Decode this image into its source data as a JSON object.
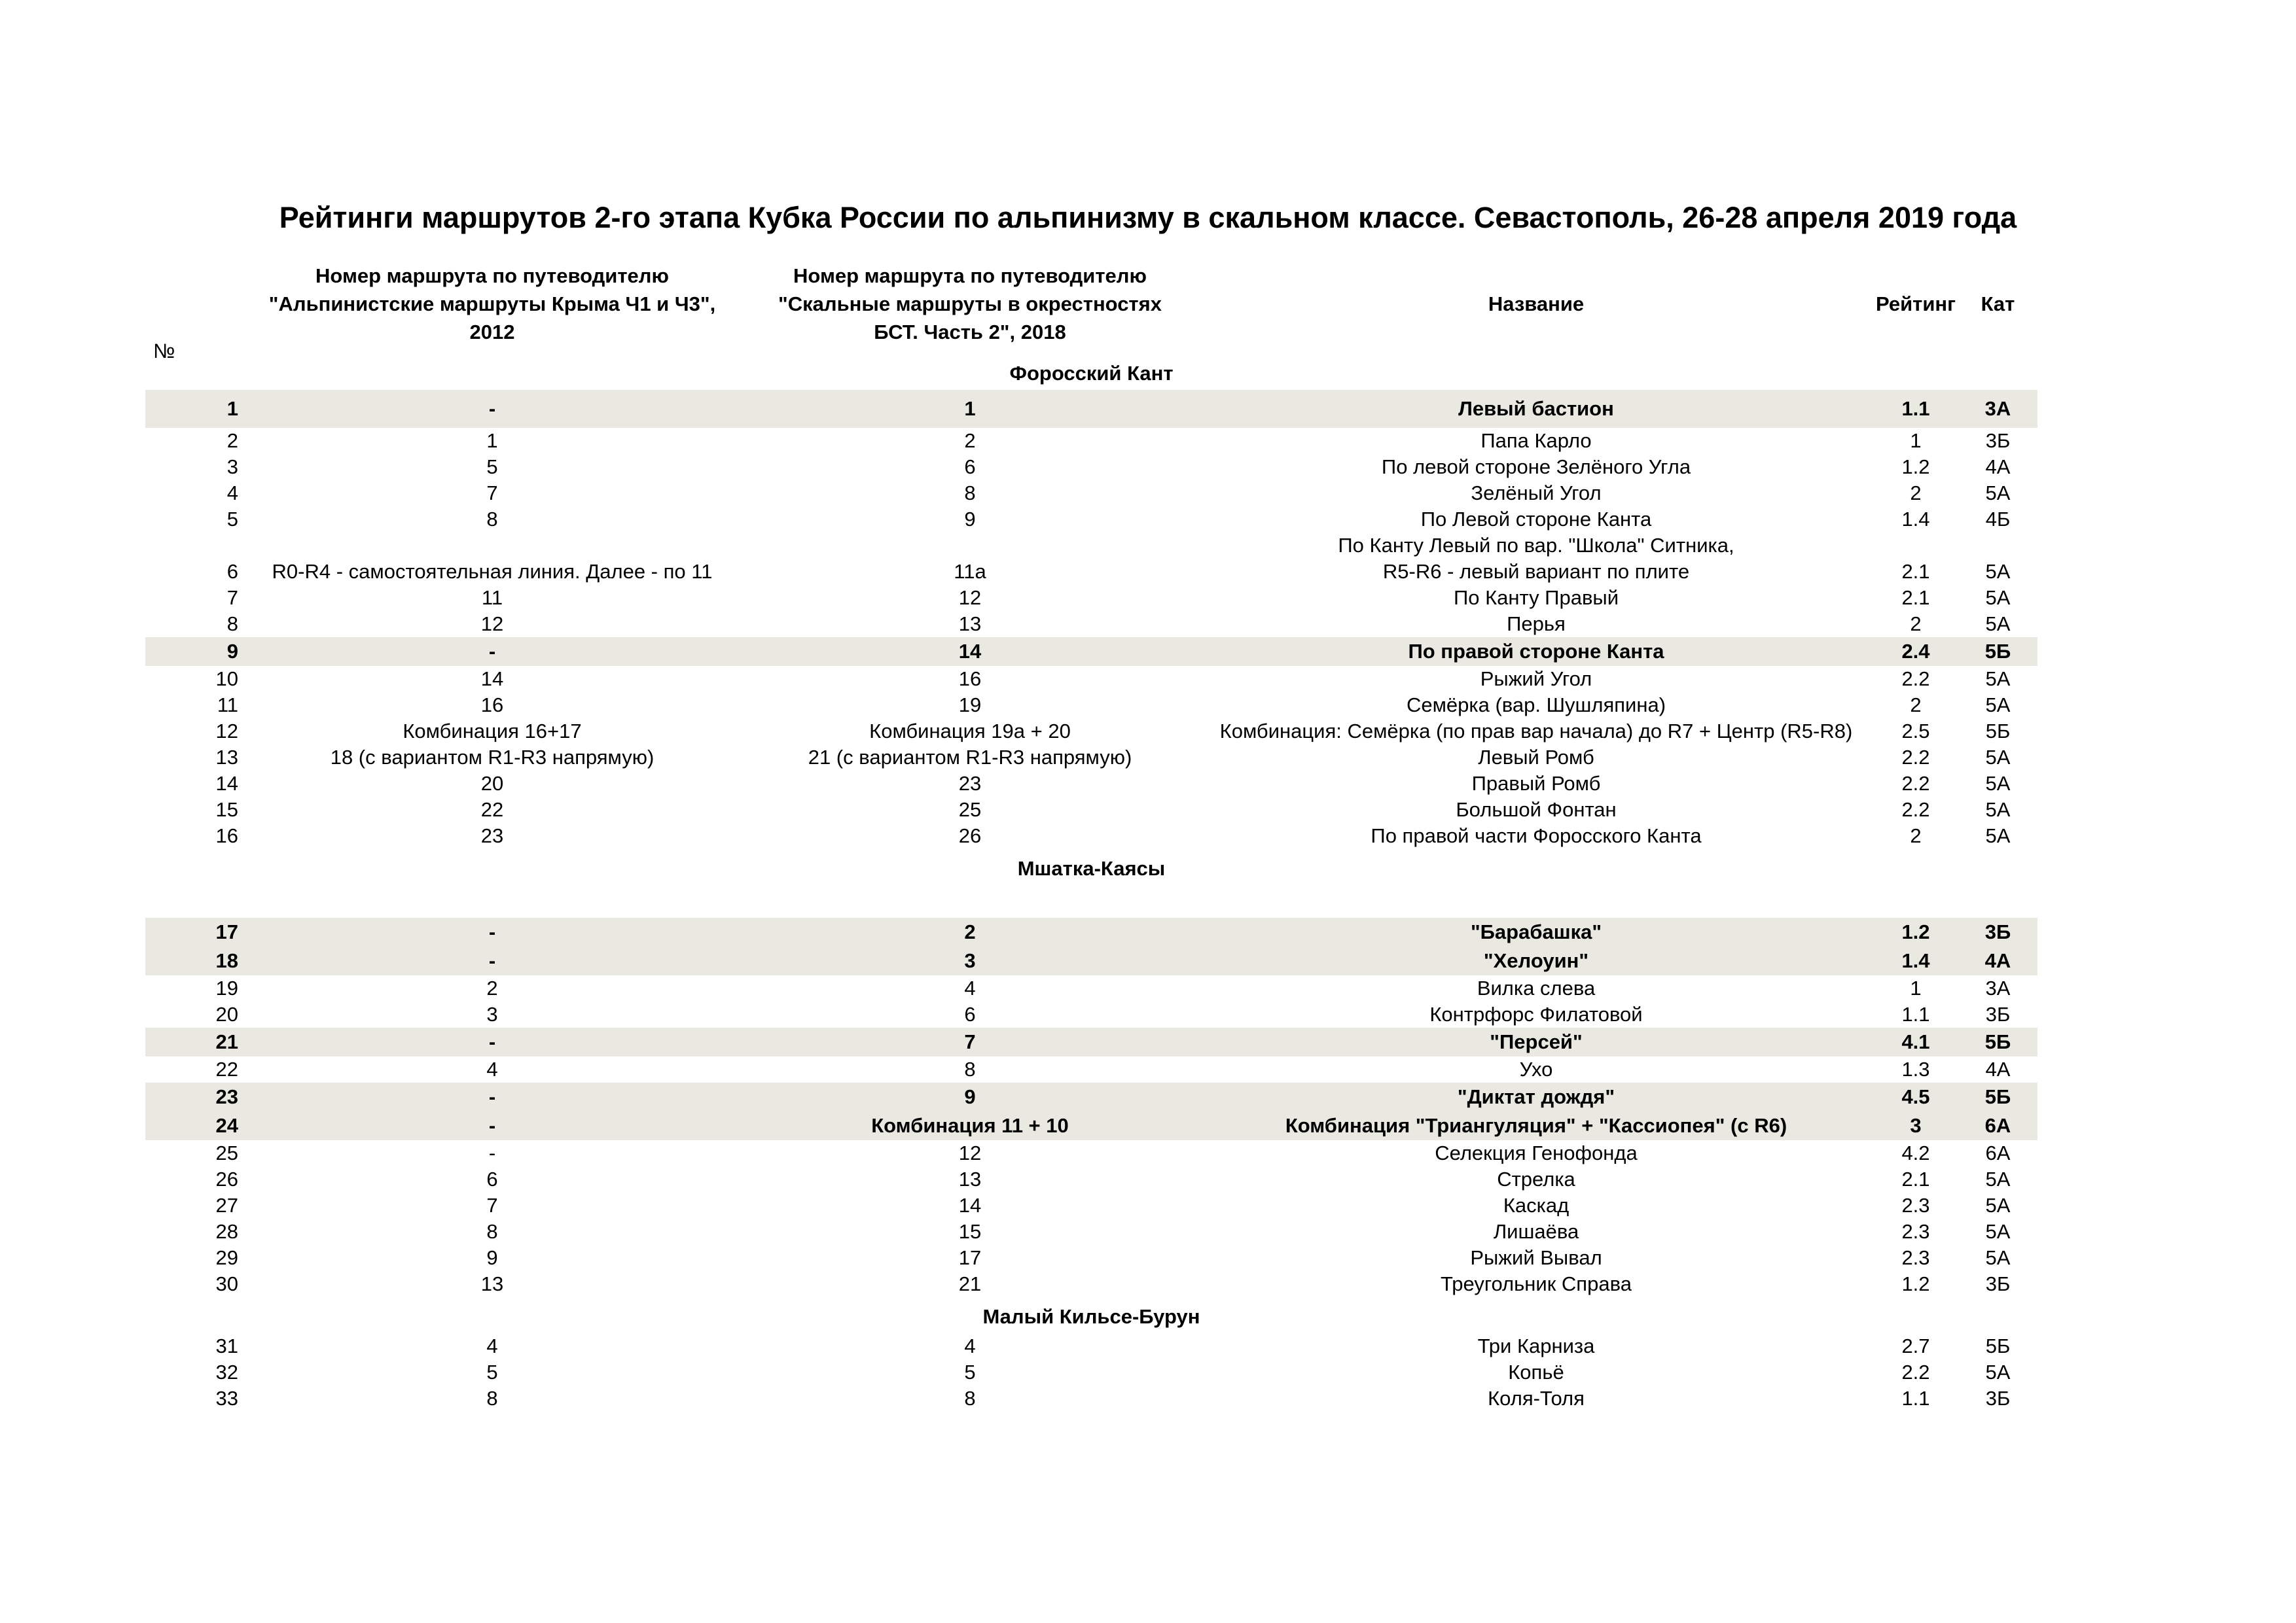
{
  "title": "Рейтинги маршрутов 2-го этапа Кубка России по альпинизму в скальном классе. Севастополь, 26-28 апреля 2019 года",
  "header": {
    "num": "№",
    "guide2012": [
      "Номер маршрута по путеводителю",
      "\"Альпинистские маршруты Крыма Ч1 и Ч3\",",
      "2012"
    ],
    "guide_bst": [
      "Номер маршрута по путеводителю",
      "\"Скальные маршруты в окрестностях",
      "БСТ. Часть 2\", 2018"
    ],
    "name": "Название",
    "rating": "Рейтинг",
    "cat": "Кат"
  },
  "highlight_color": "#e9e8e1",
  "sections": [
    {
      "title": "Форосский Кант",
      "rows": [
        {
          "n": "1",
          "a": "-",
          "b": "1",
          "name": "Левый бастион",
          "r": "1.1",
          "c": "3А",
          "hl": true
        },
        {
          "n": "2",
          "a": "1",
          "b": "2",
          "name": "Папа Карло",
          "r": "1",
          "c": "3Б"
        },
        {
          "n": "3",
          "a": "5",
          "b": "6",
          "name": "По левой стороне Зелёного Угла",
          "r": "1.2",
          "c": "4А"
        },
        {
          "n": "4",
          "a": "7",
          "b": "8",
          "name": "Зелёный Угол",
          "r": "2",
          "c": "5А"
        },
        {
          "n": "5",
          "a": "8",
          "b": "9",
          "name": "По Левой стороне Канта",
          "r": "1.4",
          "c": "4Б"
        },
        {
          "n": "6",
          "a": "R0-R4 - самостоятельная линия. Далее - по 11",
          "b": "11а",
          "above": "По Канту Левый по вар. \"Школа\" Ситника,",
          "name": "R5-R6 - левый вариант по плите",
          "r": "2.1",
          "c": "5А"
        },
        {
          "n": "7",
          "a": "11",
          "b": "12",
          "name": "По Канту Правый",
          "r": "2.1",
          "c": "5А"
        },
        {
          "n": "8",
          "a": "12",
          "b": "13",
          "name": "Перья",
          "r": "2",
          "c": "5А"
        },
        {
          "n": "9",
          "a": "-",
          "b": "14",
          "name": "По правой стороне Канта",
          "r": "2.4",
          "c": "5Б",
          "hl": true
        },
        {
          "n": "10",
          "a": "14",
          "b": "16",
          "name": "Рыжий Угол",
          "r": "2.2",
          "c": "5А"
        },
        {
          "n": "11",
          "a": "16",
          "b": "19",
          "name": "Семёрка (вар. Шушляпина)",
          "r": "2",
          "c": "5А"
        },
        {
          "n": "12",
          "a": "Комбинация 16+17",
          "b": "Комбинация 19а + 20",
          "name": "Комбинация: Семёрка (по прав вар начала) до R7 + Центр (R5-R8)",
          "r": "2.5",
          "c": "5Б"
        },
        {
          "n": "13",
          "a": "18 (с вариантом R1-R3 напрямую)",
          "b": "21 (с вариантом R1-R3 напрямую)",
          "name": "Левый Ромб",
          "r": "2.2",
          "c": "5А"
        },
        {
          "n": "14",
          "a": "20",
          "b": "23",
          "name": "Правый Ромб",
          "r": "2.2",
          "c": "5А"
        },
        {
          "n": "15",
          "a": "22",
          "b": "25",
          "name": "Большой Фонтан",
          "r": "2.2",
          "c": "5А"
        },
        {
          "n": "16",
          "a": "23",
          "b": "26",
          "name": "По правой части Форосского Канта",
          "r": "2",
          "c": "5А"
        }
      ]
    },
    {
      "title": "Мшатка-Каясы",
      "rows": [
        {
          "n": "17",
          "a": "-",
          "b": "2",
          "name": "\"Барабашка\"",
          "r": "1.2",
          "c": "3Б",
          "hl": true
        },
        {
          "n": "18",
          "a": "-",
          "b": "3",
          "name": "\"Хелоуин\"",
          "r": "1.4",
          "c": "4А",
          "hl": true
        },
        {
          "n": "19",
          "a": "2",
          "b": "4",
          "name": "Вилка слева",
          "r": "1",
          "c": "3А"
        },
        {
          "n": "20",
          "a": "3",
          "b": "6",
          "name": "Контрфорс Филатовой",
          "r": "1.1",
          "c": "3Б"
        },
        {
          "n": "21",
          "a": "-",
          "b": "7",
          "name": "\"Персей\"",
          "r": "4.1",
          "c": "5Б",
          "hl": true
        },
        {
          "n": "22",
          "a": "4",
          "b": "8",
          "name": "Ухо",
          "r": "1.3",
          "c": "4А"
        },
        {
          "n": "23",
          "a": "-",
          "b": "9",
          "name": "\"Диктат дождя\"",
          "r": "4.5",
          "c": "5Б",
          "hl": true
        },
        {
          "n": "24",
          "a": "-",
          "b": "Комбинация 11 + 10",
          "name": "Комбинация \"Триангуляция\" + \"Кассиопея\" (с R6)",
          "r": "3",
          "c": "6А",
          "hl": true
        },
        {
          "n": "25",
          "a": "-",
          "b": "12",
          "name": "Селекция Генофонда",
          "r": "4.2",
          "c": "6А"
        },
        {
          "n": "26",
          "a": "6",
          "b": "13",
          "name": "Стрелка",
          "r": "2.1",
          "c": "5А"
        },
        {
          "n": "27",
          "a": "7",
          "b": "14",
          "name": "Каскад",
          "r": "2.3",
          "c": "5А"
        },
        {
          "n": "28",
          "a": "8",
          "b": "15",
          "name": "Лишаёва",
          "r": "2.3",
          "c": "5А"
        },
        {
          "n": "29",
          "a": "9",
          "b": "17",
          "name": "Рыжий Вывал",
          "r": "2.3",
          "c": "5А"
        },
        {
          "n": "30",
          "a": "13",
          "b": "21",
          "name": "Треугольник Справа",
          "r": "1.2",
          "c": "3Б"
        }
      ]
    },
    {
      "title": "Малый Кильсе-Бурун",
      "rows": [
        {
          "n": "31",
          "a": "4",
          "b": "4",
          "name": "Три Карниза",
          "r": "2.7",
          "c": "5Б"
        },
        {
          "n": "32",
          "a": "5",
          "b": "5",
          "name": "Копьё",
          "r": "2.2",
          "c": "5А"
        },
        {
          "n": "33",
          "a": "8",
          "b": "8",
          "name": "Коля-Толя",
          "r": "1.1",
          "c": "3Б"
        }
      ]
    }
  ]
}
